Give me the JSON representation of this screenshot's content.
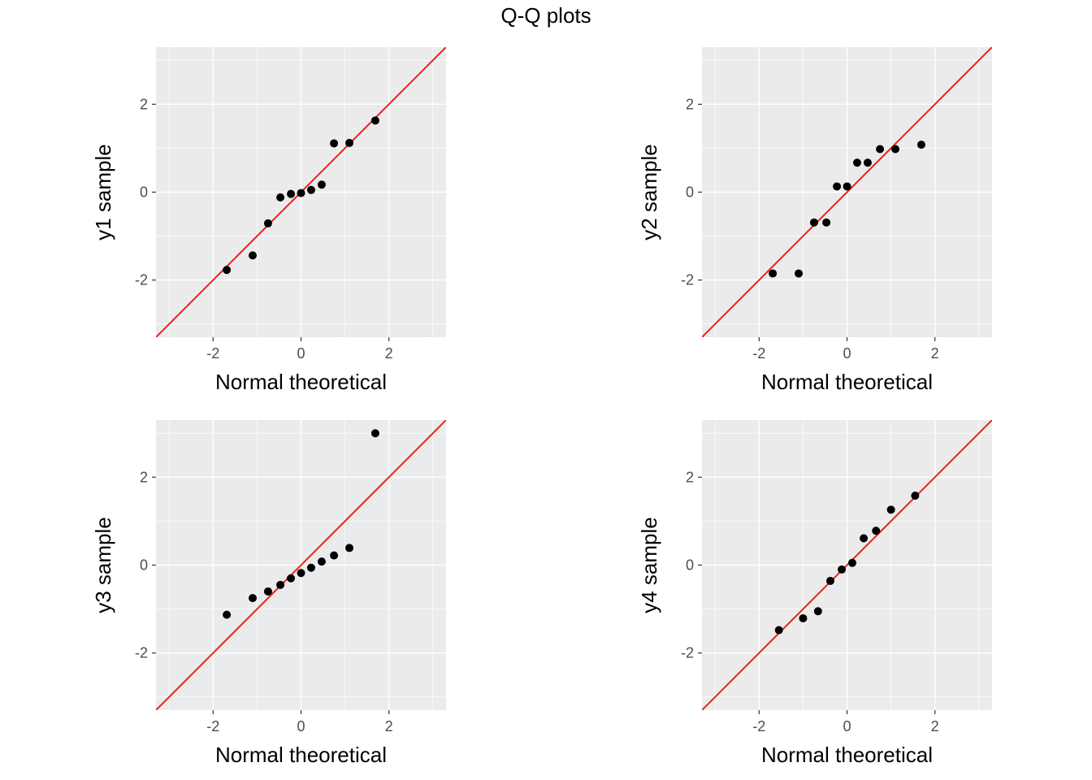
{
  "title": "Q-Q plots",
  "colors": {
    "panel_bg": "#EBEBEB",
    "grid": "#FFFFFF",
    "point": "#000000",
    "reference_line": "#E8221A",
    "tick_text": "#4D4D4D",
    "axis_text": "#000000"
  },
  "chart_data": [
    {
      "type": "scatter",
      "xlabel": "Normal theoretical",
      "ylabel": "y1 sample",
      "xlim": [
        -3.3,
        3.3
      ],
      "ylim": [
        -3.3,
        3.3
      ],
      "x_ticks": [
        "-2",
        "0",
        "2"
      ],
      "y_ticks": [
        "-2",
        "0",
        "2"
      ],
      "grid": true,
      "reference_line": {
        "slope": 1,
        "intercept": 0
      },
      "points": [
        [
          -1.69,
          -1.77
        ],
        [
          -1.1,
          -1.44
        ],
        [
          -0.75,
          -0.71
        ],
        [
          -0.47,
          -0.12
        ],
        [
          -0.23,
          -0.04
        ],
        [
          0.0,
          -0.02
        ],
        [
          0.23,
          0.05
        ],
        [
          0.47,
          0.17
        ],
        [
          0.75,
          1.11
        ],
        [
          1.1,
          1.12
        ],
        [
          1.69,
          1.63
        ]
      ]
    },
    {
      "type": "scatter",
      "xlabel": "Normal theoretical",
      "ylabel": "y2 sample",
      "xlim": [
        -3.3,
        3.3
      ],
      "ylim": [
        -3.3,
        3.3
      ],
      "x_ticks": [
        "-2",
        "0",
        "2"
      ],
      "y_ticks": [
        "-2",
        "0",
        "2"
      ],
      "grid": true,
      "reference_line": {
        "slope": 1,
        "intercept": 0
      },
      "points": [
        [
          -1.69,
          -1.85
        ],
        [
          -1.1,
          -1.85
        ],
        [
          -0.75,
          -0.69
        ],
        [
          -0.47,
          -0.69
        ],
        [
          -0.23,
          0.13
        ],
        [
          0.0,
          0.13
        ],
        [
          0.23,
          0.67
        ],
        [
          0.47,
          0.67
        ],
        [
          0.75,
          0.98
        ],
        [
          1.1,
          0.98
        ],
        [
          1.69,
          1.08
        ]
      ]
    },
    {
      "type": "scatter",
      "xlabel": "Normal theoretical",
      "ylabel": "y3 sample",
      "xlim": [
        -3.3,
        3.3
      ],
      "ylim": [
        -3.3,
        3.3
      ],
      "x_ticks": [
        "-2",
        "0",
        "2"
      ],
      "y_ticks": [
        "-2",
        "0",
        "2"
      ],
      "grid": true,
      "reference_line": {
        "slope": 1,
        "intercept": 0
      },
      "points": [
        [
          -1.69,
          -1.13
        ],
        [
          -1.1,
          -0.75
        ],
        [
          -0.75,
          -0.6
        ],
        [
          -0.47,
          -0.45
        ],
        [
          -0.23,
          -0.3
        ],
        [
          0.0,
          -0.18
        ],
        [
          0.23,
          -0.06
        ],
        [
          0.47,
          0.08
        ],
        [
          0.75,
          0.22
        ],
        [
          1.1,
          0.39
        ],
        [
          1.69,
          3.0
        ]
      ]
    },
    {
      "type": "scatter",
      "xlabel": "Normal theoretical",
      "ylabel": "y4 sample",
      "xlim": [
        -3.3,
        3.3
      ],
      "ylim": [
        -3.3,
        3.3
      ],
      "x_ticks": [
        "-2",
        "0",
        "2"
      ],
      "y_ticks": [
        "-2",
        "0",
        "2"
      ],
      "grid": true,
      "reference_line": {
        "slope": 1,
        "intercept": 0
      },
      "points": [
        [
          -1.55,
          -1.48
        ],
        [
          -1.0,
          -1.21
        ],
        [
          -0.66,
          -1.05
        ],
        [
          -0.38,
          -0.36
        ],
        [
          -0.12,
          -0.1
        ],
        [
          0.12,
          0.05
        ],
        [
          0.38,
          0.61
        ],
        [
          0.66,
          0.78
        ],
        [
          1.0,
          1.26
        ],
        [
          1.55,
          1.58
        ]
      ]
    }
  ]
}
